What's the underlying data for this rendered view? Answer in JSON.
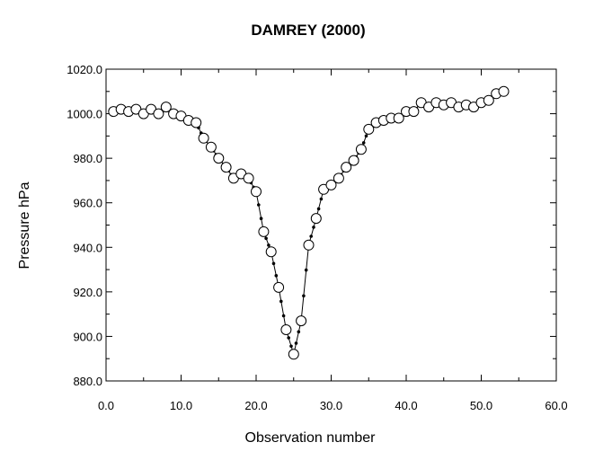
{
  "chart_data": {
    "type": "line",
    "title": "DAMREY (2000)",
    "xlabel": "Observation number",
    "ylabel": "Pressure hPa",
    "xlim": [
      0,
      60
    ],
    "ylim": [
      880,
      1020
    ],
    "x_ticks": [
      "0.0",
      "10.0",
      "20.0",
      "30.0",
      "40.0",
      "50.0",
      "60.0"
    ],
    "y_ticks": [
      "880.0",
      "900.0",
      "920.0",
      "940.0",
      "960.0",
      "980.0",
      "1000.0",
      "1020.0"
    ],
    "grid": false,
    "markers": "open-circle",
    "series": [
      {
        "x": [
          1,
          2,
          3,
          4,
          5,
          6,
          7,
          8,
          9,
          10,
          11,
          12,
          13,
          14,
          15,
          16,
          17,
          18,
          19,
          20,
          21,
          22,
          23,
          24,
          25,
          26,
          27,
          28,
          29,
          30,
          31,
          32,
          33,
          34,
          35,
          36,
          37,
          38,
          39,
          40,
          41,
          42,
          43,
          44,
          45,
          46,
          47,
          48,
          49,
          50,
          51,
          52,
          53
        ],
        "y": [
          1001,
          1002,
          1001,
          1002,
          1000,
          1002,
          1000,
          1003,
          1000,
          999,
          997,
          996,
          989,
          985,
          980,
          976,
          971,
          973,
          971,
          965,
          947,
          938,
          922,
          903,
          892,
          907,
          941,
          953,
          966,
          968,
          971,
          976,
          979,
          984,
          993,
          996,
          997,
          998,
          998,
          1001,
          1001,
          1005,
          1003,
          1005,
          1004,
          1005,
          1003,
          1004,
          1003,
          1005,
          1006,
          1009,
          1010
        ]
      }
    ]
  }
}
